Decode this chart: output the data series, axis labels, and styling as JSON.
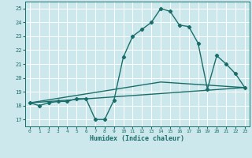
{
  "xlabel": "Humidex (Indice chaleur)",
  "background_color": "#cde8ed",
  "grid_color": "#ffffff",
  "line_color": "#1a6e6a",
  "xlim": [
    -0.5,
    23.5
  ],
  "ylim": [
    16.5,
    25.5
  ],
  "xticks": [
    0,
    1,
    2,
    3,
    4,
    5,
    6,
    7,
    8,
    9,
    10,
    11,
    12,
    13,
    14,
    15,
    16,
    17,
    18,
    19,
    20,
    21,
    22,
    23
  ],
  "yticks": [
    17,
    18,
    19,
    20,
    21,
    22,
    23,
    24,
    25
  ],
  "series1_x": [
    0,
    1,
    2,
    3,
    4,
    5,
    6,
    7,
    8,
    9,
    10,
    11,
    12,
    13,
    14,
    15,
    16,
    17,
    18,
    19,
    20,
    21,
    22,
    23
  ],
  "series1_y": [
    18.2,
    18.0,
    18.2,
    18.3,
    18.3,
    18.5,
    18.5,
    17.0,
    17.0,
    18.4,
    21.5,
    23.0,
    23.5,
    24.0,
    25.0,
    24.8,
    23.8,
    23.7,
    22.5,
    19.2,
    21.6,
    21.0,
    20.3,
    19.3
  ],
  "series2_x": [
    0,
    23
  ],
  "series2_y": [
    18.2,
    19.3
  ],
  "series3_x": [
    0,
    14,
    23
  ],
  "series3_y": [
    18.2,
    19.7,
    19.3
  ],
  "marker_size": 2.2,
  "line_width": 1.0
}
